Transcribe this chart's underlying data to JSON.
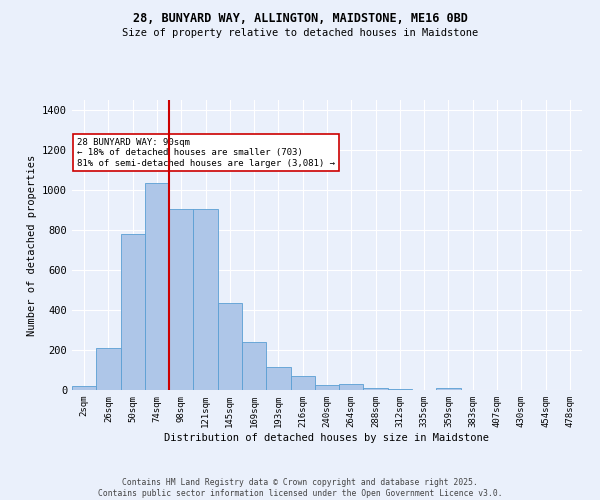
{
  "title_line1": "28, BUNYARD WAY, ALLINGTON, MAIDSTONE, ME16 0BD",
  "title_line2": "Size of property relative to detached houses in Maidstone",
  "xlabel": "Distribution of detached houses by size in Maidstone",
  "ylabel": "Number of detached properties",
  "bin_labels": [
    "2sqm",
    "26sqm",
    "50sqm",
    "74sqm",
    "98sqm",
    "121sqm",
    "145sqm",
    "169sqm",
    "193sqm",
    "216sqm",
    "240sqm",
    "264sqm",
    "288sqm",
    "312sqm",
    "335sqm",
    "359sqm",
    "383sqm",
    "407sqm",
    "430sqm",
    "454sqm",
    "478sqm"
  ],
  "bar_values": [
    22,
    210,
    780,
    1035,
    905,
    905,
    435,
    238,
    113,
    68,
    25,
    28,
    12,
    5,
    0,
    10,
    0,
    0,
    0,
    0,
    0
  ],
  "bar_color": "#aec6e8",
  "bar_edge_color": "#5a9fd4",
  "background_color": "#eaf0fb",
  "grid_color": "#ffffff",
  "vline_color": "#cc0000",
  "vline_position": 3.5,
  "annotation_text": "28 BUNYARD WAY: 90sqm\n← 18% of detached houses are smaller (703)\n81% of semi-detached houses are larger (3,081) →",
  "annotation_box_color": "#ffffff",
  "annotation_box_edge": "#cc0000",
  "footer_line1": "Contains HM Land Registry data © Crown copyright and database right 2025.",
  "footer_line2": "Contains public sector information licensed under the Open Government Licence v3.0.",
  "ylim": [
    0,
    1450
  ],
  "yticks": [
    0,
    200,
    400,
    600,
    800,
    1000,
    1200,
    1400
  ]
}
